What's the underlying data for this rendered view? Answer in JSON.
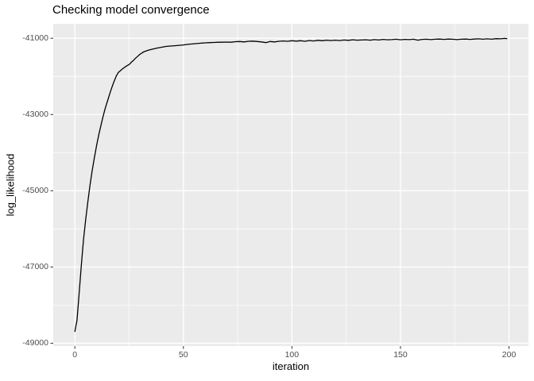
{
  "colors": {
    "outer_bg": "#FFFFFF",
    "panel_bg": "#EBEBEB",
    "grid_major": "#FFFFFF",
    "grid_minor": "#FFFFFF",
    "line": "#000000",
    "tick_mark": "#333333",
    "tick_label": "#4D4D4D",
    "title_text": "#000000"
  },
  "chart_data": {
    "type": "line",
    "title": "Checking model convergence",
    "xlabel": "iteration",
    "ylabel": "log_likelihood",
    "x_ticks": [
      0,
      50,
      100,
      150,
      200
    ],
    "x_minor": [
      25,
      75,
      125,
      175
    ],
    "y_ticks": [
      -41000,
      -43000,
      -45000,
      -47000,
      -49000
    ],
    "y_minor": [
      -42000,
      -44000,
      -46000,
      -48000
    ],
    "xlim": [
      -9.95,
      208.95
    ],
    "ylim": [
      -49074,
      -40621
    ],
    "grid": true,
    "legend": false,
    "series": [
      {
        "name": "log_likelihood",
        "points": [
          [
            0,
            -48690
          ],
          [
            1,
            -48400
          ],
          [
            2,
            -47690
          ],
          [
            3,
            -46940
          ],
          [
            4,
            -46280
          ],
          [
            5,
            -45760
          ],
          [
            6,
            -45280
          ],
          [
            7,
            -44850
          ],
          [
            8,
            -44470
          ],
          [
            9,
            -44130
          ],
          [
            10,
            -43820
          ],
          [
            11,
            -43540
          ],
          [
            12,
            -43290
          ],
          [
            13,
            -43050
          ],
          [
            14,
            -42840
          ],
          [
            15,
            -42650
          ],
          [
            16,
            -42470
          ],
          [
            17,
            -42300
          ],
          [
            18,
            -42140
          ],
          [
            19,
            -42000
          ],
          [
            20,
            -41900
          ],
          [
            21,
            -41850
          ],
          [
            22,
            -41800
          ],
          [
            23,
            -41760
          ],
          [
            24,
            -41720
          ],
          [
            25,
            -41690
          ],
          [
            26,
            -41630
          ],
          [
            27,
            -41580
          ],
          [
            28,
            -41520
          ],
          [
            29,
            -41470
          ],
          [
            30,
            -41420
          ],
          [
            31,
            -41380
          ],
          [
            32,
            -41350
          ],
          [
            34,
            -41310
          ],
          [
            36,
            -41280
          ],
          [
            38,
            -41255
          ],
          [
            40,
            -41235
          ],
          [
            42,
            -41215
          ],
          [
            44,
            -41205
          ],
          [
            46,
            -41195
          ],
          [
            48,
            -41185
          ],
          [
            50,
            -41175
          ],
          [
            52,
            -41160
          ],
          [
            54,
            -41150
          ],
          [
            56,
            -41140
          ],
          [
            58,
            -41130
          ],
          [
            60,
            -41120
          ],
          [
            62,
            -41115
          ],
          [
            64,
            -41110
          ],
          [
            66,
            -41105
          ],
          [
            68,
            -41105
          ],
          [
            70,
            -41100
          ],
          [
            72,
            -41105
          ],
          [
            74,
            -41090
          ],
          [
            76,
            -41085
          ],
          [
            78,
            -41095
          ],
          [
            80,
            -41080
          ],
          [
            82,
            -41075
          ],
          [
            84,
            -41085
          ],
          [
            86,
            -41095
          ],
          [
            88,
            -41115
          ],
          [
            90,
            -41085
          ],
          [
            92,
            -41095
          ],
          [
            94,
            -41080
          ],
          [
            96,
            -41070
          ],
          [
            98,
            -41080
          ],
          [
            100,
            -41065
          ],
          [
            102,
            -41075
          ],
          [
            104,
            -41065
          ],
          [
            106,
            -41080
          ],
          [
            108,
            -41060
          ],
          [
            110,
            -41070
          ],
          [
            112,
            -41055
          ],
          [
            114,
            -41065
          ],
          [
            116,
            -41050
          ],
          [
            118,
            -41060
          ],
          [
            120,
            -41050
          ],
          [
            122,
            -41060
          ],
          [
            124,
            -41045
          ],
          [
            126,
            -41055
          ],
          [
            128,
            -41040
          ],
          [
            130,
            -41050
          ],
          [
            132,
            -41045
          ],
          [
            134,
            -41040
          ],
          [
            136,
            -41050
          ],
          [
            138,
            -41035
          ],
          [
            140,
            -41045
          ],
          [
            142,
            -41030
          ],
          [
            144,
            -41040
          ],
          [
            146,
            -41035
          ],
          [
            148,
            -41025
          ],
          [
            150,
            -41040
          ],
          [
            152,
            -41030
          ],
          [
            154,
            -41035
          ],
          [
            156,
            -41025
          ],
          [
            158,
            -41050
          ],
          [
            160,
            -41030
          ],
          [
            162,
            -41025
          ],
          [
            164,
            -41035
          ],
          [
            166,
            -41025
          ],
          [
            168,
            -41020
          ],
          [
            170,
            -41030
          ],
          [
            172,
            -41020
          ],
          [
            174,
            -41025
          ],
          [
            176,
            -41035
          ],
          [
            178,
            -41025
          ],
          [
            180,
            -41020
          ],
          [
            182,
            -41030
          ],
          [
            184,
            -41020
          ],
          [
            186,
            -41015
          ],
          [
            188,
            -41025
          ],
          [
            190,
            -41015
          ],
          [
            192,
            -41025
          ],
          [
            194,
            -41010
          ],
          [
            196,
            -41015
          ],
          [
            198,
            -41005
          ],
          [
            199,
            -41010
          ]
        ]
      }
    ]
  }
}
